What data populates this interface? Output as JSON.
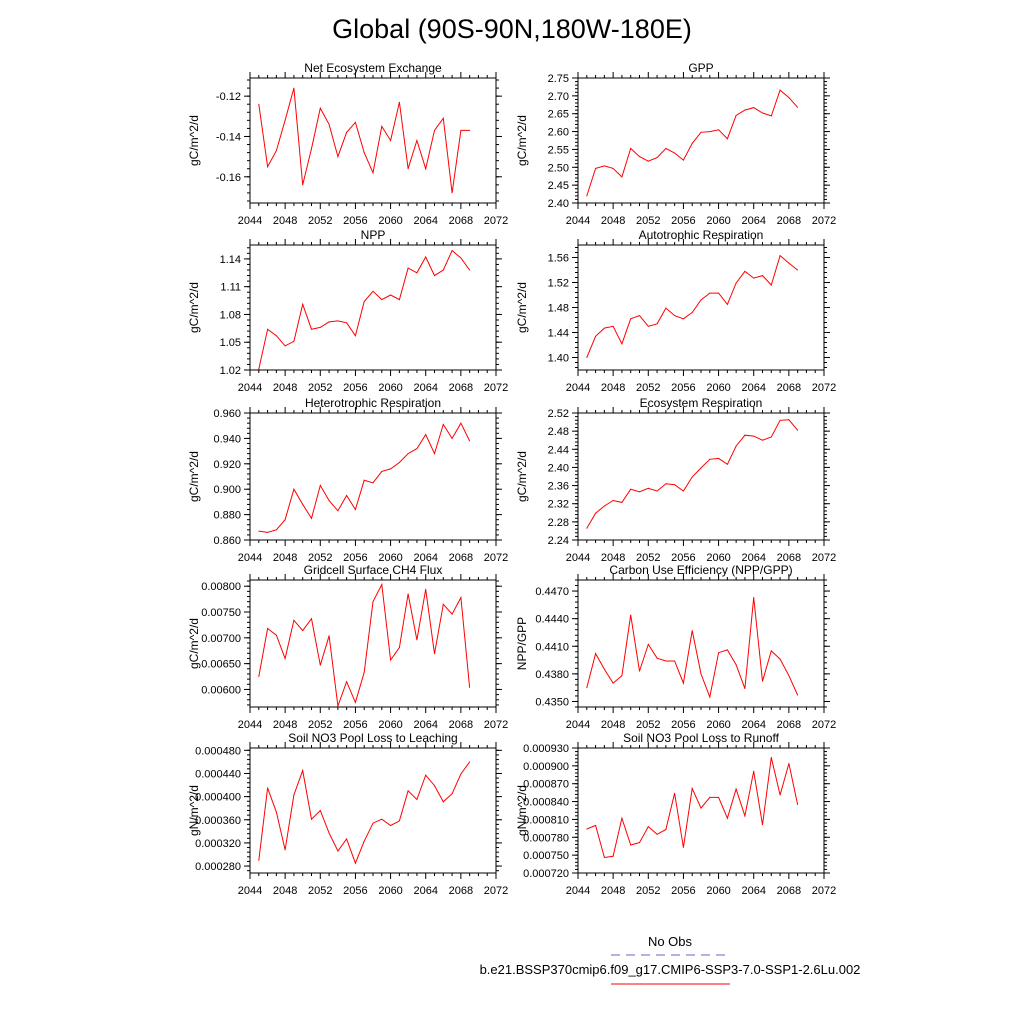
{
  "figure": {
    "title": "Global (90S-90N,180W-180E)",
    "legend": {
      "entries": [
        {
          "label": "No Obs",
          "color": "#6666cc",
          "dash": true
        },
        {
          "label": "b.e21.BSSP370cmip6.f09_g17.CMIP6-SSP3-7.0-SSP1-2.6Lu.002",
          "color": "#ff0000",
          "dash": false
        }
      ]
    }
  },
  "chart_data": [
    {
      "type": "line",
      "title": "Net Ecosystem Exchange",
      "ylabel": "gC/m^2/d",
      "xlim": [
        2044,
        2072
      ],
      "xticks": [
        2044,
        2048,
        2052,
        2056,
        2060,
        2064,
        2068,
        2072
      ],
      "ylim": [
        -0.173,
        -0.111
      ],
      "yticks": [
        -0.16,
        -0.14,
        -0.12
      ],
      "ytick_labels": [
        "-0.16",
        "-0.14",
        "-0.12"
      ],
      "x": [
        2045,
        2046,
        2047,
        2048,
        2049,
        2050,
        2051,
        2052,
        2053,
        2054,
        2055,
        2056,
        2057,
        2058,
        2059,
        2060,
        2061,
        2062,
        2063,
        2064,
        2065,
        2066,
        2067,
        2068,
        2069
      ],
      "series": [
        {
          "values": [
            -0.124,
            -0.155,
            -0.147,
            -0.132,
            -0.116,
            -0.164,
            -0.146,
            -0.126,
            -0.134,
            -0.15,
            -0.138,
            -0.133,
            -0.148,
            -0.158,
            -0.135,
            -0.142,
            -0.123,
            -0.156,
            -0.142,
            -0.156,
            -0.137,
            -0.131,
            -0.168,
            -0.137,
            -0.137
          ],
          "color": "#ff0000"
        }
      ]
    },
    {
      "type": "line",
      "title": "GPP",
      "ylabel": "gC/m^2/d",
      "xlim": [
        2044,
        2072
      ],
      "xticks": [
        2044,
        2048,
        2052,
        2056,
        2060,
        2064,
        2068,
        2072
      ],
      "ylim": [
        2.4,
        2.75
      ],
      "yticks": [
        2.4,
        2.45,
        2.5,
        2.55,
        2.6,
        2.65,
        2.7,
        2.75
      ],
      "ytick_labels": [
        "2.40",
        "2.45",
        "2.50",
        "2.55",
        "2.60",
        "2.65",
        "2.70",
        "2.75"
      ],
      "x": [
        2045,
        2046,
        2047,
        2048,
        2049,
        2050,
        2051,
        2052,
        2053,
        2054,
        2055,
        2056,
        2057,
        2058,
        2059,
        2060,
        2061,
        2062,
        2063,
        2064,
        2065,
        2066,
        2067,
        2068,
        2069
      ],
      "series": [
        {
          "values": [
            2.42,
            2.497,
            2.504,
            2.497,
            2.473,
            2.553,
            2.53,
            2.517,
            2.527,
            2.553,
            2.54,
            2.52,
            2.567,
            2.598,
            2.6,
            2.605,
            2.58,
            2.645,
            2.66,
            2.667,
            2.652,
            2.644,
            2.716,
            2.695,
            2.668
          ],
          "color": "#ff0000"
        }
      ]
    },
    {
      "type": "line",
      "title": "NPP",
      "ylabel": "gC/m^2/d",
      "xlim": [
        2044,
        2072
      ],
      "xticks": [
        2044,
        2048,
        2052,
        2056,
        2060,
        2064,
        2068,
        2072
      ],
      "ylim": [
        1.02,
        1.155
      ],
      "yticks": [
        1.02,
        1.05,
        1.08,
        1.11,
        1.14
      ],
      "ytick_labels": [
        "1.02",
        "1.05",
        "1.08",
        "1.11",
        "1.14"
      ],
      "x": [
        2045,
        2046,
        2047,
        2048,
        2049,
        2050,
        2051,
        2052,
        2053,
        2054,
        2055,
        2056,
        2057,
        2058,
        2059,
        2060,
        2061,
        2062,
        2063,
        2064,
        2065,
        2066,
        2067,
        2068,
        2069
      ],
      "series": [
        {
          "values": [
            1.021,
            1.064,
            1.057,
            1.046,
            1.051,
            1.091,
            1.064,
            1.066,
            1.072,
            1.073,
            1.071,
            1.057,
            1.094,
            1.105,
            1.096,
            1.101,
            1.096,
            1.13,
            1.125,
            1.142,
            1.122,
            1.128,
            1.149,
            1.141,
            1.128
          ],
          "color": "#ff0000"
        }
      ]
    },
    {
      "type": "line",
      "title": "Autotrophic Respiration",
      "ylabel": "gC/m^2/d",
      "xlim": [
        2044,
        2072
      ],
      "xticks": [
        2044,
        2048,
        2052,
        2056,
        2060,
        2064,
        2068,
        2072
      ],
      "ylim": [
        1.38,
        1.58
      ],
      "yticks": [
        1.4,
        1.44,
        1.48,
        1.52,
        1.56
      ],
      "ytick_labels": [
        "1.40",
        "1.44",
        "1.48",
        "1.52",
        "1.56"
      ],
      "x": [
        2045,
        2046,
        2047,
        2048,
        2049,
        2050,
        2051,
        2052,
        2053,
        2054,
        2055,
        2056,
        2057,
        2058,
        2059,
        2060,
        2061,
        2062,
        2063,
        2064,
        2065,
        2066,
        2067,
        2068,
        2069
      ],
      "series": [
        {
          "values": [
            1.4,
            1.434,
            1.447,
            1.45,
            1.422,
            1.462,
            1.467,
            1.45,
            1.454,
            1.479,
            1.467,
            1.462,
            1.472,
            1.492,
            1.503,
            1.503,
            1.485,
            1.519,
            1.538,
            1.527,
            1.531,
            1.516,
            1.563,
            1.551,
            1.54
          ],
          "color": "#ff0000"
        }
      ]
    },
    {
      "type": "line",
      "title": "Heterotrophic Respiration",
      "ylabel": "gC/m^2/d",
      "xlim": [
        2044,
        2072
      ],
      "xticks": [
        2044,
        2048,
        2052,
        2056,
        2060,
        2064,
        2068,
        2072
      ],
      "ylim": [
        0.86,
        0.96
      ],
      "yticks": [
        0.86,
        0.88,
        0.9,
        0.92,
        0.94,
        0.96
      ],
      "ytick_labels": [
        "0.860",
        "0.880",
        "0.900",
        "0.920",
        "0.940",
        "0.960"
      ],
      "x": [
        2045,
        2046,
        2047,
        2048,
        2049,
        2050,
        2051,
        2052,
        2053,
        2054,
        2055,
        2056,
        2057,
        2058,
        2059,
        2060,
        2061,
        2062,
        2063,
        2064,
        2065,
        2066,
        2067,
        2068,
        2069
      ],
      "series": [
        {
          "values": [
            0.867,
            0.866,
            0.868,
            0.876,
            0.9,
            0.888,
            0.877,
            0.903,
            0.891,
            0.883,
            0.895,
            0.884,
            0.907,
            0.905,
            0.914,
            0.916,
            0.921,
            0.928,
            0.932,
            0.943,
            0.928,
            0.951,
            0.94,
            0.952,
            0.938
          ],
          "color": "#ff0000"
        }
      ]
    },
    {
      "type": "line",
      "title": "Ecosystem Respiration",
      "ylabel": "gC/m^2/d",
      "xlim": [
        2044,
        2072
      ],
      "xticks": [
        2044,
        2048,
        2052,
        2056,
        2060,
        2064,
        2068,
        2072
      ],
      "ylim": [
        2.24,
        2.52
      ],
      "yticks": [
        2.24,
        2.28,
        2.32,
        2.36,
        2.4,
        2.44,
        2.48,
        2.52
      ],
      "ytick_labels": [
        "2.24",
        "2.28",
        "2.32",
        "2.36",
        "2.40",
        "2.44",
        "2.48",
        "2.52"
      ],
      "x": [
        2045,
        2046,
        2047,
        2048,
        2049,
        2050,
        2051,
        2052,
        2053,
        2054,
        2055,
        2056,
        2057,
        2058,
        2059,
        2060,
        2061,
        2062,
        2063,
        2064,
        2065,
        2066,
        2067,
        2068,
        2069
      ],
      "series": [
        {
          "values": [
            2.266,
            2.299,
            2.315,
            2.327,
            2.323,
            2.352,
            2.346,
            2.354,
            2.348,
            2.364,
            2.362,
            2.348,
            2.379,
            2.399,
            2.418,
            2.42,
            2.407,
            2.447,
            2.471,
            2.469,
            2.46,
            2.467,
            2.504,
            2.505,
            2.482
          ],
          "color": "#ff0000"
        }
      ]
    },
    {
      "type": "line",
      "title": "Gridcell Surface CH4 Flux",
      "ylabel": "gC/m^2/d",
      "xlim": [
        2044,
        2072
      ],
      "xticks": [
        2044,
        2048,
        2052,
        2056,
        2060,
        2064,
        2068,
        2072
      ],
      "ylim": [
        0.00566,
        0.00812
      ],
      "yticks": [
        0.006,
        0.0065,
        0.007,
        0.0075,
        0.008
      ],
      "ytick_labels": [
        "0.00600",
        "0.00650",
        "0.00700",
        "0.00750",
        "0.00800"
      ],
      "x": [
        2045,
        2046,
        2047,
        2048,
        2049,
        2050,
        2051,
        2052,
        2053,
        2054,
        2055,
        2056,
        2057,
        2058,
        2059,
        2060,
        2061,
        2062,
        2063,
        2064,
        2065,
        2066,
        2067,
        2068,
        2069
      ],
      "series": [
        {
          "values": [
            0.00625,
            0.00718,
            0.00705,
            0.0066,
            0.00734,
            0.00714,
            0.00737,
            0.00647,
            0.00704,
            0.00568,
            0.00615,
            0.00575,
            0.00633,
            0.0077,
            0.00803,
            0.00657,
            0.00681,
            0.00785,
            0.00696,
            0.00794,
            0.00669,
            0.00765,
            0.00746,
            0.00778,
            0.00604
          ],
          "color": "#ff0000"
        }
      ]
    },
    {
      "type": "line",
      "title": "Carbon Use Efficiency (NPP/GPP)",
      "ylabel": "NPP/GPP",
      "xlim": [
        2044,
        2072
      ],
      "xticks": [
        2044,
        2048,
        2052,
        2056,
        2060,
        2064,
        2068,
        2072
      ],
      "ylim": [
        0.4344,
        0.4482
      ],
      "yticks": [
        0.435,
        0.438,
        0.441,
        0.444,
        0.447
      ],
      "ytick_labels": [
        "0.4350",
        "0.4380",
        "0.4410",
        "0.4440",
        "0.4470"
      ],
      "x": [
        2045,
        2046,
        2047,
        2048,
        2049,
        2050,
        2051,
        2052,
        2053,
        2054,
        2055,
        2056,
        2057,
        2058,
        2059,
        2060,
        2061,
        2062,
        2063,
        2064,
        2065,
        2066,
        2067,
        2068,
        2069
      ],
      "series": [
        {
          "values": [
            0.4365,
            0.4402,
            0.4385,
            0.437,
            0.4378,
            0.4444,
            0.4383,
            0.4412,
            0.4397,
            0.4394,
            0.4394,
            0.437,
            0.4427,
            0.438,
            0.4355,
            0.4403,
            0.4406,
            0.439,
            0.4364,
            0.4463,
            0.4372,
            0.4405,
            0.4396,
            0.4378,
            0.4357
          ],
          "color": "#ff0000"
        }
      ]
    },
    {
      "type": "line",
      "title": "Soil NO3 Pool Loss to Leaching",
      "ylabel": "gN/m^2/d",
      "xlim": [
        2044,
        2072
      ],
      "xticks": [
        2044,
        2048,
        2052,
        2056,
        2060,
        2064,
        2068,
        2072
      ],
      "ylim": [
        0.000268,
        0.000484
      ],
      "yticks": [
        0.00028,
        0.00032,
        0.00036,
        0.0004,
        0.00044,
        0.00048
      ],
      "ytick_labels": [
        "0.000280",
        "0.000320",
        "0.000360",
        "0.000400",
        "0.000440",
        "0.000480"
      ],
      "x": [
        2045,
        2046,
        2047,
        2048,
        2049,
        2050,
        2051,
        2052,
        2053,
        2054,
        2055,
        2056,
        2057,
        2058,
        2059,
        2060,
        2061,
        2062,
        2063,
        2064,
        2065,
        2066,
        2067,
        2068,
        2069
      ],
      "series": [
        {
          "values": [
            0.00029,
            0.000415,
            0.000373,
            0.000308,
            0.000403,
            0.000445,
            0.000361,
            0.000376,
            0.000337,
            0.000306,
            0.000327,
            0.000285,
            0.000323,
            0.000354,
            0.000361,
            0.00035,
            0.000358,
            0.00041,
            0.000395,
            0.000437,
            0.000419,
            0.000391,
            0.000405,
            0.000439,
            0.00046
          ],
          "color": "#ff0000"
        }
      ]
    },
    {
      "type": "line",
      "title": "Soil NO3 Pool Loss to Runoff",
      "ylabel": "gN/m^2/d",
      "xlim": [
        2044,
        2072
      ],
      "xticks": [
        2044,
        2048,
        2052,
        2056,
        2060,
        2064,
        2068,
        2072
      ],
      "ylim": [
        0.00072,
        0.00093
      ],
      "yticks": [
        0.00072,
        0.00075,
        0.00078,
        0.00081,
        0.00084,
        0.00087,
        0.0009,
        0.00093
      ],
      "ytick_labels": [
        "0.000720",
        "0.000750",
        "0.000780",
        "0.000810",
        "0.000840",
        "0.000870",
        "0.000900",
        "0.000930"
      ],
      "x": [
        2045,
        2046,
        2047,
        2048,
        2049,
        2050,
        2051,
        2052,
        2053,
        2054,
        2055,
        2056,
        2057,
        2058,
        2059,
        2060,
        2061,
        2062,
        2063,
        2064,
        2065,
        2066,
        2067,
        2068,
        2069
      ],
      "series": [
        {
          "values": [
            0.000794,
            0.0008,
            0.000746,
            0.000748,
            0.000812,
            0.000767,
            0.000771,
            0.000798,
            0.000785,
            0.000793,
            0.000854,
            0.000763,
            0.000862,
            0.000829,
            0.000847,
            0.000847,
            0.000812,
            0.000861,
            0.000816,
            0.000891,
            0.000801,
            0.000914,
            0.000851,
            0.000904,
            0.000835
          ],
          "color": "#ff0000"
        }
      ]
    }
  ]
}
